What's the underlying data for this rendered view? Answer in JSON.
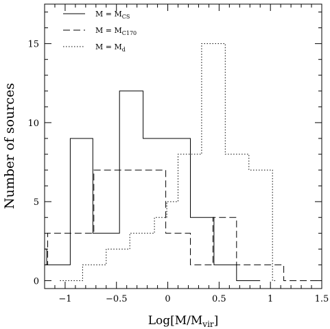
{
  "chart_data": {
    "type": "histogram",
    "xlabel_main": "Log[M/M",
    "xlabel_sub": "vir",
    "xlabel_end": "]",
    "ylabel": "Number of sources",
    "xlim": [
      -1.2,
      1.5
    ],
    "ylim": [
      -0.5,
      17.5
    ],
    "x_ticks": [
      {
        "value": -1,
        "label": "−1"
      },
      {
        "value": -0.5,
        "label": "−0.5"
      },
      {
        "value": 0,
        "label": "0"
      },
      {
        "value": 0.5,
        "label": "0.5"
      },
      {
        "value": 1,
        "label": "1"
      },
      {
        "value": 1.5,
        "label": "1.5"
      }
    ],
    "y_ticks": [
      {
        "value": 0,
        "label": "0"
      },
      {
        "value": 5,
        "label": "5"
      },
      {
        "value": 10,
        "label": "10"
      },
      {
        "value": 15,
        "label": "15"
      }
    ],
    "legend_position": "top-left",
    "series": [
      {
        "name": "M = M_CS",
        "legend_main": "M  =  M",
        "legend_sub": "CS",
        "style": "solid",
        "x": [
          -1.2,
          -1.18,
          -1.18,
          -0.95,
          -0.95,
          -0.73,
          -0.73,
          -0.47,
          -0.47,
          -0.24,
          -0.24,
          0.22,
          0.22,
          0.45,
          0.45,
          0.67,
          0.67,
          0.9
        ],
        "y": [
          2,
          2,
          1,
          1,
          9,
          9,
          3,
          3,
          12,
          12,
          9,
          9,
          4,
          4,
          1,
          1,
          0,
          0
        ]
      },
      {
        "name": "M = M_C170",
        "legend_main": "M  =  M",
        "legend_sub": "C170",
        "style": "dashed",
        "x": [
          -1.2,
          -1.17,
          -1.17,
          -0.72,
          -0.72,
          -0.02,
          -0.02,
          0.22,
          0.22,
          0.44,
          0.44,
          0.67,
          0.67,
          1.13,
          1.13,
          1.5
        ],
        "y": [
          1,
          1,
          3,
          3,
          7,
          7,
          3,
          3,
          1,
          1,
          4,
          4,
          1,
          1,
          0,
          0
        ]
      },
      {
        "name": "M = M_d",
        "legend_main": "M  =  M",
        "legend_sub": "d",
        "style": "dotted",
        "x": [
          -1.05,
          -0.83,
          -0.83,
          -0.6,
          -0.6,
          -0.37,
          -0.37,
          -0.13,
          -0.13,
          -0.01,
          -0.01,
          0.1,
          0.1,
          0.33,
          0.33,
          0.56,
          0.56,
          0.79,
          0.79,
          1.02,
          1.02,
          1.05
        ],
        "y": [
          0,
          0,
          1,
          1,
          2,
          2,
          3,
          3,
          4,
          4,
          5,
          5,
          8,
          8,
          15,
          15,
          8,
          8,
          7,
          7,
          0,
          0
        ]
      }
    ]
  }
}
